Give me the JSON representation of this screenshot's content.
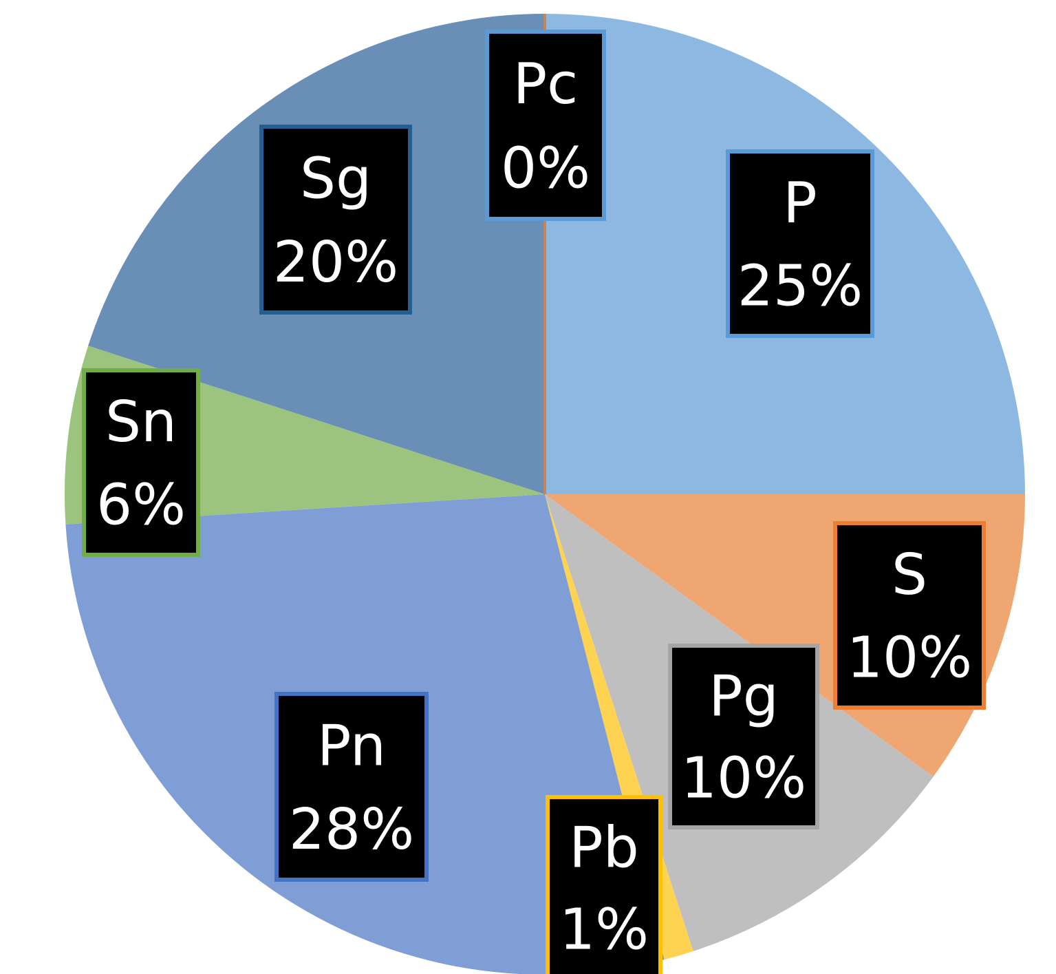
{
  "chart_data": {
    "type": "pie",
    "categories": [
      "P",
      "S",
      "Pg",
      "Pb",
      "Pn",
      "Sn",
      "Sg",
      "Pc"
    ],
    "values": [
      25,
      10,
      10,
      1,
      28,
      6,
      20,
      0
    ],
    "labels": [
      "25%",
      "10%",
      "10%",
      "1%",
      "28%",
      "6%",
      "20%",
      "0%"
    ],
    "colors": [
      "#8DB8E1",
      "#F0A670",
      "#BFBFBF",
      "#FED352",
      "#7F9ED5",
      "#9DC47E",
      "#6A8FB6",
      "#C6845E"
    ],
    "label_border_colors": [
      "#5B9BD5",
      "#ED7D31",
      "#A5A5A5",
      "#FFC000",
      "#4472C4",
      "#70AD47",
      "#255E91",
      "#5B9BD5"
    ],
    "legend": "none",
    "grid": false
  }
}
